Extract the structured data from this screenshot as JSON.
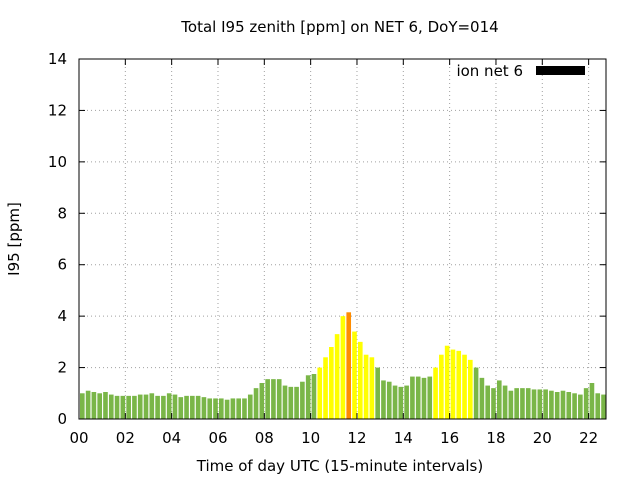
{
  "chart_data": {
    "type": "bar",
    "title": "Total I95 zenith [ppm] on NET 6, DoY=014",
    "xlabel": "Time of day UTC (15-minute intervals)",
    "ylabel": "I95 [ppm]",
    "xlim": [
      0,
      22.75
    ],
    "ylim": [
      0,
      14
    ],
    "grid": true,
    "legend": {
      "position": "top-right",
      "label": "ion net 6",
      "color": "#000000"
    },
    "x_ticks": [
      "00",
      "02",
      "04",
      "06",
      "08",
      "10",
      "12",
      "14",
      "16",
      "18",
      "20",
      "22"
    ],
    "x_tick_values": [
      0,
      2,
      4,
      6,
      8,
      10,
      12,
      14,
      16,
      18,
      20,
      22
    ],
    "y_ticks": [
      "0",
      "2",
      "4",
      "6",
      "8",
      "10",
      "12",
      "14"
    ],
    "y_tick_values": [
      0,
      2,
      4,
      6,
      8,
      10,
      12,
      14
    ],
    "bar_width_hours": 0.2,
    "color_scale": {
      "green": "#7ab648",
      "yellow": "#ffff00",
      "orange": "#ff8c00"
    },
    "series": [
      {
        "x": [
          0.0,
          0.25,
          0.5,
          0.75,
          1.0,
          1.25,
          1.5,
          1.75,
          2.0,
          2.25,
          2.5,
          2.75,
          3.0,
          3.25,
          3.5,
          3.75,
          4.0,
          4.25,
          4.5,
          4.75,
          5.0,
          5.25,
          5.5,
          5.75,
          6.0,
          6.25,
          6.5,
          6.75,
          7.0,
          7.25,
          7.5,
          7.75,
          8.0,
          8.25,
          8.5,
          8.75,
          9.0,
          9.25,
          9.5,
          9.75,
          10.0,
          10.25,
          10.5,
          10.75,
          11.0,
          11.25,
          11.5,
          11.75,
          12.0,
          12.25,
          12.5,
          12.75,
          13.0,
          13.25,
          13.5,
          13.75,
          14.0,
          14.25,
          14.5,
          14.75,
          15.0,
          15.25,
          15.5,
          15.75,
          16.0,
          16.25,
          16.5,
          16.75,
          17.0,
          17.25,
          17.5,
          17.75,
          18.0,
          18.25,
          18.5,
          18.75,
          19.0,
          19.25,
          19.5,
          19.75,
          20.0,
          20.25,
          20.5,
          20.75,
          21.0,
          21.25,
          21.5,
          21.75,
          22.0,
          22.25,
          22.5
        ],
        "values": [
          1.0,
          1.1,
          1.05,
          1.0,
          1.05,
          0.95,
          0.9,
          0.9,
          0.9,
          0.9,
          0.95,
          0.95,
          1.0,
          0.9,
          0.9,
          1.0,
          0.95,
          0.85,
          0.9,
          0.9,
          0.9,
          0.85,
          0.8,
          0.8,
          0.8,
          0.75,
          0.8,
          0.8,
          0.8,
          0.95,
          1.2,
          1.4,
          1.55,
          1.55,
          1.55,
          1.3,
          1.25,
          1.25,
          1.45,
          1.7,
          1.75,
          2.0,
          2.4,
          2.8,
          3.3,
          4.0,
          4.15,
          3.4,
          3.0,
          2.5,
          2.4,
          2.0,
          1.5,
          1.45,
          1.3,
          1.25,
          1.3,
          1.65,
          1.65,
          1.6,
          1.65,
          2.0,
          2.5,
          2.85,
          2.7,
          2.65,
          2.5,
          2.3,
          2.0,
          1.6,
          1.3,
          1.2,
          1.5,
          1.3,
          1.1,
          1.2,
          1.2,
          1.2,
          1.15,
          1.15,
          1.15,
          1.1,
          1.05,
          1.1,
          1.05,
          1.0,
          0.95,
          1.2,
          1.4,
          1.0,
          0.95
        ],
        "colors": [
          "green",
          "green",
          "green",
          "green",
          "green",
          "green",
          "green",
          "green",
          "green",
          "green",
          "green",
          "green",
          "green",
          "green",
          "green",
          "green",
          "green",
          "green",
          "green",
          "green",
          "green",
          "green",
          "green",
          "green",
          "green",
          "green",
          "green",
          "green",
          "green",
          "green",
          "green",
          "green",
          "green",
          "green",
          "green",
          "green",
          "green",
          "green",
          "green",
          "green",
          "green",
          "yellow",
          "yellow",
          "yellow",
          "yellow",
          "yellow",
          "orange",
          "yellow",
          "yellow",
          "yellow",
          "yellow",
          "green",
          "green",
          "green",
          "green",
          "green",
          "green",
          "green",
          "green",
          "green",
          "green",
          "yellow",
          "yellow",
          "yellow",
          "yellow",
          "yellow",
          "yellow",
          "yellow",
          "green",
          "green",
          "green",
          "green",
          "green",
          "green",
          "green",
          "green",
          "green",
          "green",
          "green",
          "green",
          "green",
          "green",
          "green",
          "green",
          "green",
          "green",
          "green",
          "green",
          "green",
          "green",
          "green"
        ]
      }
    ]
  }
}
